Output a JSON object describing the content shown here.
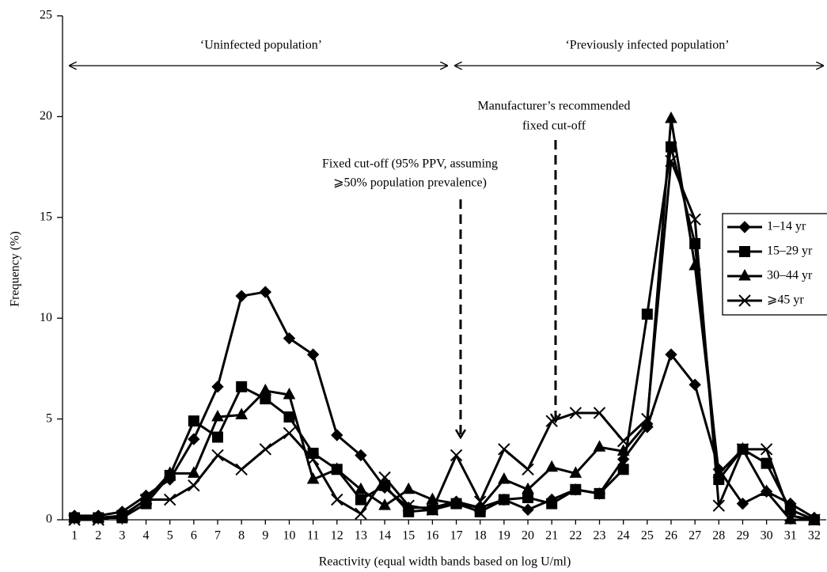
{
  "chart_data": {
    "type": "line",
    "xlabel": "Reactivity (equal width bands based on log U/ml)",
    "ylabel": "Frequency (%)",
    "x": [
      1,
      2,
      3,
      4,
      5,
      6,
      7,
      8,
      9,
      10,
      11,
      12,
      13,
      14,
      15,
      16,
      17,
      18,
      19,
      20,
      21,
      22,
      23,
      24,
      25,
      26,
      27,
      28,
      29,
      30,
      31,
      32
    ],
    "xlim": [
      0.5,
      32.5
    ],
    "xticks": [
      1,
      2,
      3,
      4,
      5,
      6,
      7,
      8,
      9,
      10,
      11,
      12,
      13,
      14,
      15,
      16,
      17,
      18,
      19,
      20,
      21,
      22,
      23,
      24,
      25,
      26,
      27,
      28,
      29,
      30,
      31,
      32
    ],
    "ylim": [
      0,
      25
    ],
    "yticks": [
      0,
      5,
      10,
      15,
      20,
      25
    ],
    "annotations": {
      "uninfected": "‘Uninfected population’",
      "infected": "‘Previously infected population’",
      "manufacturer": [
        "Manufacturer’s recommended",
        "fixed cut-off"
      ],
      "fixed": [
        "Fixed cut-off (95% PPV, assuming",
        "⩾50% population prevalence)"
      ]
    },
    "legend": "right",
    "series": [
      {
        "name": "1–14 yr",
        "color": "#000000",
        "marker": "diamond",
        "values": [
          0.2,
          0.2,
          0.4,
          1.2,
          2.0,
          4.0,
          6.6,
          11.1,
          11.3,
          9.0,
          8.2,
          4.2,
          3.2,
          1.6,
          0.6,
          0.6,
          0.9,
          0.6,
          1.0,
          0.5,
          1.0,
          1.5,
          1.3,
          3.0,
          4.6,
          8.2,
          6.7,
          2.5,
          0.8,
          1.4,
          0.8,
          0.1
        ]
      },
      {
        "name": "15–29 yr",
        "color": "#000000",
        "marker": "square",
        "values": [
          0.1,
          0.1,
          0.1,
          0.8,
          2.2,
          4.9,
          4.1,
          6.6,
          6.0,
          5.1,
          3.3,
          2.5,
          1.0,
          1.7,
          0.4,
          0.5,
          0.8,
          0.4,
          1.0,
          1.1,
          0.8,
          1.5,
          1.3,
          2.5,
          10.2,
          18.5,
          13.7,
          2.0,
          3.5,
          2.8,
          0.5,
          0.0
        ]
      },
      {
        "name": "30–44 yr",
        "color": "#000000",
        "marker": "triangle",
        "values": [
          0.1,
          0.1,
          0.2,
          1.0,
          2.3,
          2.3,
          5.1,
          5.2,
          6.4,
          6.2,
          2.0,
          2.5,
          1.5,
          0.7,
          1.5,
          1.0,
          0.8,
          0.6,
          2.0,
          1.5,
          2.6,
          2.3,
          3.6,
          3.4,
          4.8,
          19.9,
          12.6,
          2.3,
          3.5,
          1.4,
          0.0,
          0.0
        ]
      },
      {
        "name": "⩾45 yr",
        "color": "#000000",
        "marker": "x",
        "values": [
          0.0,
          0.0,
          0.2,
          1.0,
          1.0,
          1.7,
          3.2,
          2.5,
          3.5,
          4.3,
          3.0,
          1.0,
          0.3,
          2.1,
          0.7,
          0.5,
          3.2,
          0.9,
          3.5,
          2.5,
          4.9,
          5.3,
          5.3,
          3.9,
          5.0,
          17.8,
          14.9,
          0.7,
          3.5,
          3.5,
          0.2,
          0.0
        ]
      }
    ]
  }
}
